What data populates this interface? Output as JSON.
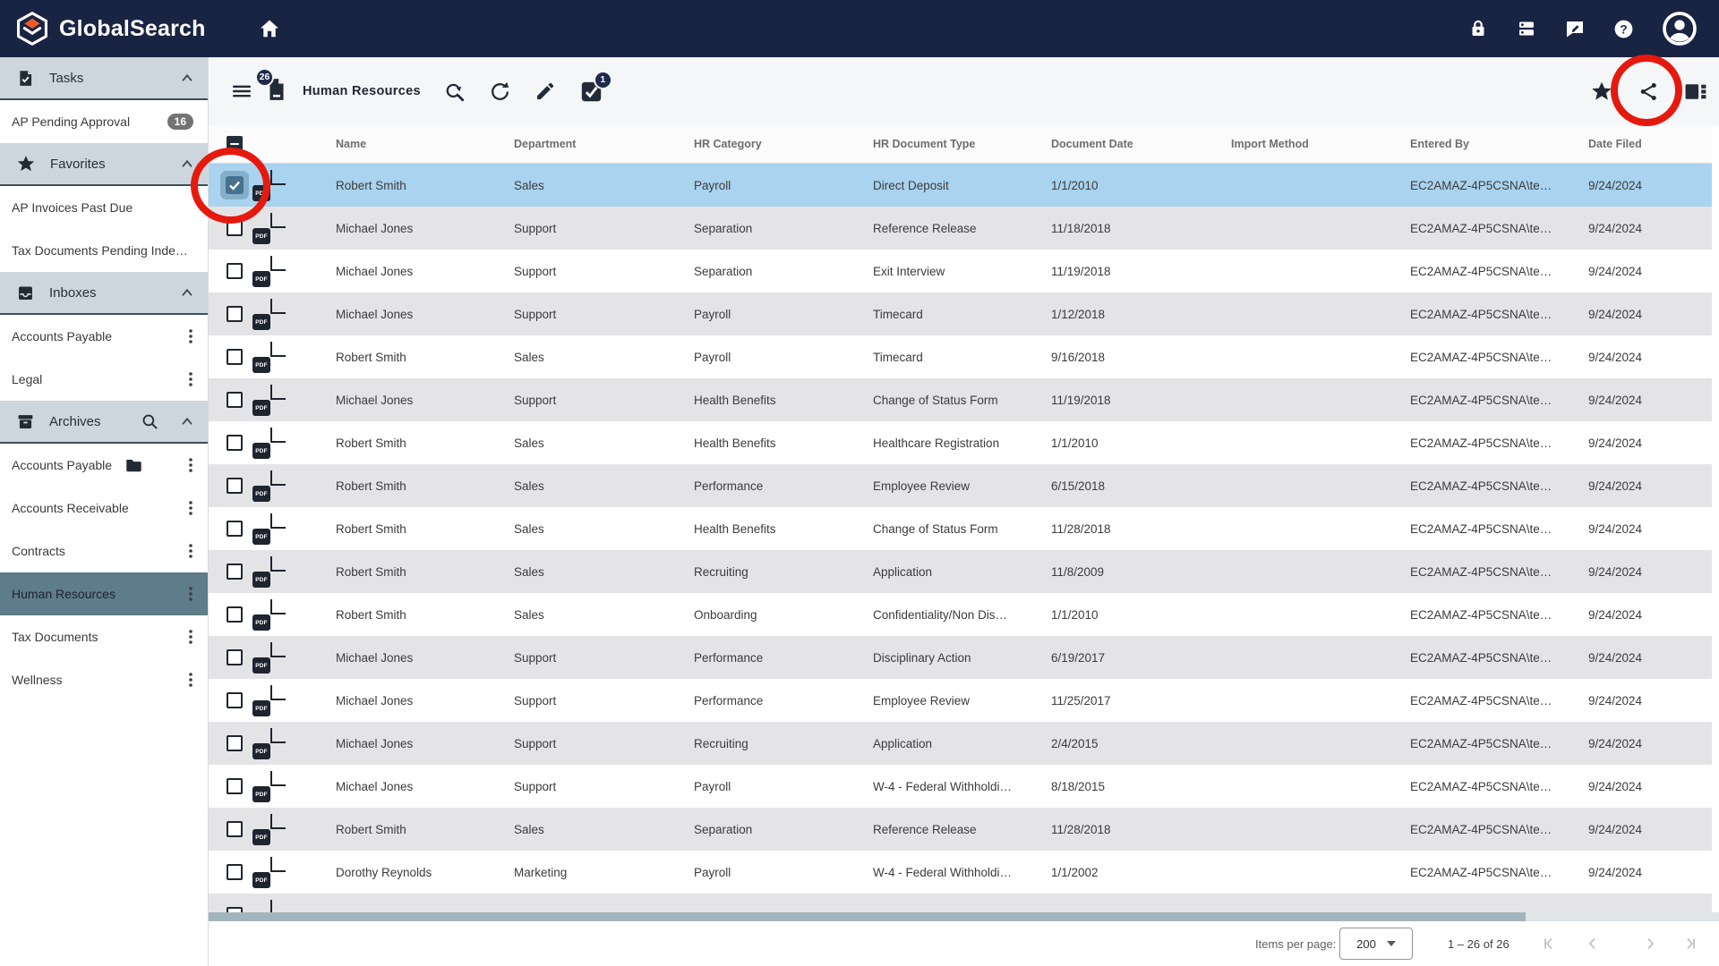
{
  "topbar": {
    "brand": "GlobalSearch",
    "icons": [
      "home-icon",
      "lock-icon",
      "dns-icon",
      "feedback-icon",
      "help-icon",
      "account-icon"
    ]
  },
  "sidebar": {
    "sections": [
      {
        "label": "Tasks",
        "icon": "task-icon",
        "items": [
          {
            "label": "AP Pending Approval",
            "badge": "16"
          }
        ]
      },
      {
        "label": "Favorites",
        "icon": "star-icon",
        "items": [
          {
            "label": "AP Invoices Past Due"
          },
          {
            "label": "Tax Documents Pending Inde…"
          }
        ]
      },
      {
        "label": "Inboxes",
        "icon": "inbox-icon",
        "items": [
          {
            "label": "Accounts Payable",
            "kebab": true
          },
          {
            "label": "Legal",
            "kebab": true
          }
        ]
      },
      {
        "label": "Archives",
        "icon": "archive-icon",
        "search": true,
        "items": [
          {
            "label": "Accounts Payable",
            "folder": true,
            "kebab": true
          },
          {
            "label": "Accounts Receivable",
            "kebab": true
          },
          {
            "label": "Contracts",
            "kebab": true
          },
          {
            "label": "Human Resources",
            "kebab": true,
            "selected": true
          },
          {
            "label": "Tax Documents",
            "kebab": true
          },
          {
            "label": "Wellness",
            "kebab": true
          }
        ]
      }
    ]
  },
  "toolbar": {
    "queue_badge": "26",
    "title": "Human Resources",
    "check_badge": "1",
    "icons": [
      "menu-icon",
      "document-count-icon",
      "search-refresh-icon",
      "refresh-icon",
      "edit-icon",
      "task-check-icon",
      "star-icon",
      "share-icon",
      "view-column-icon"
    ]
  },
  "table": {
    "columns": [
      "Name",
      "Department",
      "HR Category",
      "HR Document Type",
      "Document Date",
      "Import Method",
      "Entered By",
      "Date Filed"
    ],
    "rows": [
      {
        "selected": true,
        "name": "Robert Smith",
        "department": "Sales",
        "category": "Payroll",
        "type": "Direct Deposit",
        "date": "1/1/2010",
        "import": "",
        "entered": "EC2AMAZ-4P5CSNA\\te…",
        "filed": "9/24/2024"
      },
      {
        "name": "Michael Jones",
        "department": "Support",
        "category": "Separation",
        "type": "Reference Release",
        "date": "11/18/2018",
        "import": "",
        "entered": "EC2AMAZ-4P5CSNA\\te…",
        "filed": "9/24/2024"
      },
      {
        "name": "Michael Jones",
        "department": "Support",
        "category": "Separation",
        "type": "Exit Interview",
        "date": "11/19/2018",
        "import": "",
        "entered": "EC2AMAZ-4P5CSNA\\te…",
        "filed": "9/24/2024"
      },
      {
        "name": "Michael Jones",
        "department": "Support",
        "category": "Payroll",
        "type": "Timecard",
        "date": "1/12/2018",
        "import": "",
        "entered": "EC2AMAZ-4P5CSNA\\te…",
        "filed": "9/24/2024"
      },
      {
        "name": "Robert Smith",
        "department": "Sales",
        "category": "Payroll",
        "type": "Timecard",
        "date": "9/16/2018",
        "import": "",
        "entered": "EC2AMAZ-4P5CSNA\\te…",
        "filed": "9/24/2024"
      },
      {
        "name": "Michael Jones",
        "department": "Support",
        "category": "Health Benefits",
        "type": "Change of Status Form",
        "date": "11/19/2018",
        "import": "",
        "entered": "EC2AMAZ-4P5CSNA\\te…",
        "filed": "9/24/2024"
      },
      {
        "name": "Robert Smith",
        "department": "Sales",
        "category": "Health Benefits",
        "type": "Healthcare Registration",
        "date": "1/1/2010",
        "import": "",
        "entered": "EC2AMAZ-4P5CSNA\\te…",
        "filed": "9/24/2024"
      },
      {
        "name": "Robert Smith",
        "department": "Sales",
        "category": "Performance",
        "type": "Employee Review",
        "date": "6/15/2018",
        "import": "",
        "entered": "EC2AMAZ-4P5CSNA\\te…",
        "filed": "9/24/2024"
      },
      {
        "name": "Robert Smith",
        "department": "Sales",
        "category": "Health Benefits",
        "type": "Change of Status Form",
        "date": "11/28/2018",
        "import": "",
        "entered": "EC2AMAZ-4P5CSNA\\te…",
        "filed": "9/24/2024"
      },
      {
        "name": "Robert Smith",
        "department": "Sales",
        "category": "Recruiting",
        "type": "Application",
        "date": "11/8/2009",
        "import": "",
        "entered": "EC2AMAZ-4P5CSNA\\te…",
        "filed": "9/24/2024"
      },
      {
        "name": "Robert Smith",
        "department": "Sales",
        "category": "Onboarding",
        "type": "Confidentiality/Non Dis…",
        "date": "1/1/2010",
        "import": "",
        "entered": "EC2AMAZ-4P5CSNA\\te…",
        "filed": "9/24/2024"
      },
      {
        "name": "Michael Jones",
        "department": "Support",
        "category": "Performance",
        "type": "Disciplinary Action",
        "date": "6/19/2017",
        "import": "",
        "entered": "EC2AMAZ-4P5CSNA\\te…",
        "filed": "9/24/2024"
      },
      {
        "name": "Michael Jones",
        "department": "Support",
        "category": "Performance",
        "type": "Employee Review",
        "date": "11/25/2017",
        "import": "",
        "entered": "EC2AMAZ-4P5CSNA\\te…",
        "filed": "9/24/2024"
      },
      {
        "name": "Michael Jones",
        "department": "Support",
        "category": "Recruiting",
        "type": "Application",
        "date": "2/4/2015",
        "import": "",
        "entered": "EC2AMAZ-4P5CSNA\\te…",
        "filed": "9/24/2024"
      },
      {
        "name": "Michael Jones",
        "department": "Support",
        "category": "Payroll",
        "type": "W-4 - Federal Withholdi…",
        "date": "8/18/2015",
        "import": "",
        "entered": "EC2AMAZ-4P5CSNA\\te…",
        "filed": "9/24/2024"
      },
      {
        "name": "Robert Smith",
        "department": "Sales",
        "category": "Separation",
        "type": "Reference Release",
        "date": "11/28/2018",
        "import": "",
        "entered": "EC2AMAZ-4P5CSNA\\te…",
        "filed": "9/24/2024"
      },
      {
        "name": "Dorothy Reynolds",
        "department": "Marketing",
        "category": "Payroll",
        "type": "W-4 - Federal Withholdi…",
        "date": "1/1/2002",
        "import": "",
        "entered": "EC2AMAZ-4P5CSNA\\te…",
        "filed": "9/24/2024"
      }
    ]
  },
  "footer": {
    "items_per_page_label": "Items per page:",
    "page_size": "200",
    "range_label": "1 – 26 of 26",
    "pager_icons": [
      "first-page-icon",
      "prev-page-icon",
      "next-page-icon",
      "last-page-icon"
    ]
  },
  "annotations": [
    {
      "shape": "circle",
      "color": "#e6190e",
      "target": "share-button"
    },
    {
      "shape": "circle",
      "color": "#e6190e",
      "target": "first-row-checkbox"
    }
  ],
  "colors": {
    "topbar_navy": "#192342",
    "selected_row_blue": "#a9d3ef",
    "selected_sidebar_slate": "#5e7c8a",
    "section_header_gray": "#ccd6dc",
    "row_alt_gray": "#e4e4e7",
    "annotation_red": "#e6190e",
    "badge_navy": "#1f2a4d",
    "badge_gray": "#737373"
  }
}
